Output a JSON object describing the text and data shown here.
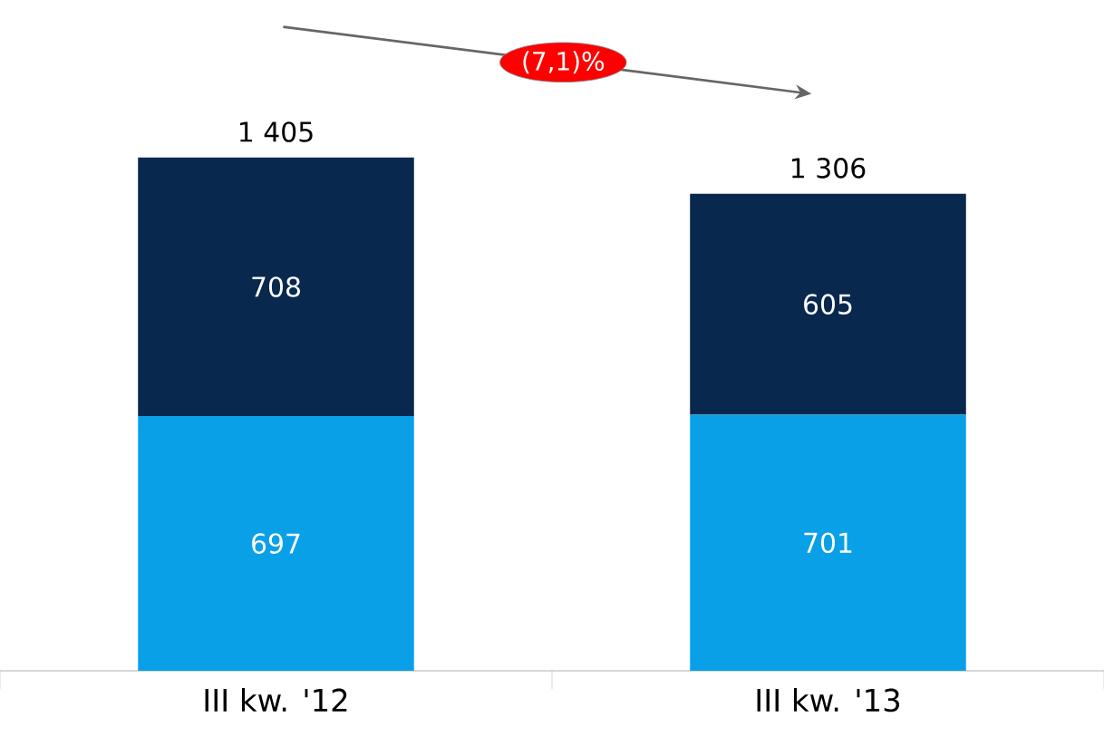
{
  "chart_data": {
    "type": "bar",
    "stacked": true,
    "data_labels": true,
    "categories": [
      "III kw. '12",
      "III kw. '13"
    ],
    "series": [
      {
        "color": "#0aa0e8",
        "values": [
          697,
          701
        ]
      },
      {
        "color": "#08284e",
        "values": [
          708,
          605
        ]
      }
    ],
    "totals": [
      "1 405",
      "1 306"
    ],
    "annotations": [
      "(7,1)%"
    ]
  }
}
